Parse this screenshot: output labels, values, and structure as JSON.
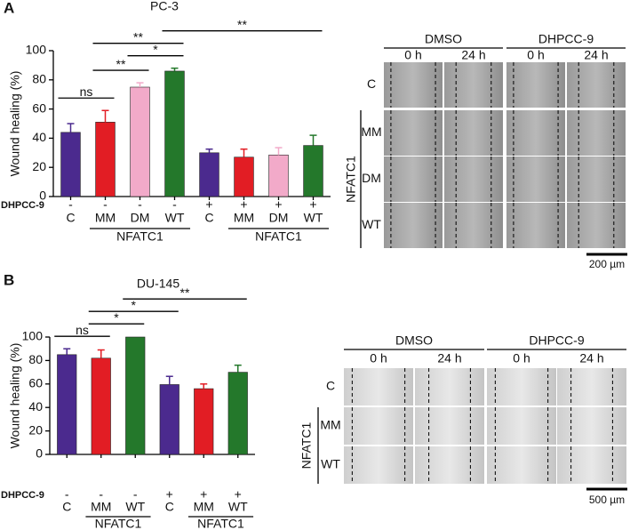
{
  "chart_data": [
    {
      "type": "bar",
      "panel": "A",
      "title": "PC-3",
      "y_label": "Wound healing (%)",
      "categories": [
        "C",
        "MM",
        "DM",
        "WT",
        "C",
        "MM",
        "DM",
        "WT"
      ],
      "treatment_label": "DHPCC-9",
      "treatment": [
        "-",
        "-",
        "-",
        "-",
        "+",
        "+",
        "+",
        "+"
      ],
      "groups": [
        {
          "label": "NFATC1",
          "from": 1,
          "to": 3
        },
        {
          "label": "NFATC1",
          "from": 5,
          "to": 7
        }
      ],
      "values": [
        44,
        51,
        75,
        86,
        30,
        27,
        28.5,
        35
      ],
      "errors": [
        6,
        8,
        3,
        2,
        2.5,
        5.5,
        5,
        7
      ],
      "colors": [
        "#4b2a8e",
        "#e21d24",
        "#f2aac9",
        "#24782b",
        "#4b2a8e",
        "#e21d24",
        "#f2aac9",
        "#24782b"
      ],
      "ylim": [
        0,
        100
      ],
      "yticks": [
        0,
        20,
        40,
        60,
        80,
        100
      ],
      "annotations": [
        {
          "from": 0,
          "to": 1,
          "label": "ns"
        },
        {
          "from": 1,
          "to": 2,
          "label": "**"
        },
        {
          "from": 2,
          "to": 3,
          "label": "*"
        },
        {
          "from": 1,
          "to": 3,
          "label": "**"
        },
        {
          "from": 3,
          "to": 7,
          "label": "**"
        }
      ]
    },
    {
      "type": "bar",
      "panel": "B",
      "title": "DU-145",
      "y_label": "Wound healing (%)",
      "categories": [
        "C",
        "MM",
        "WT",
        "C",
        "MM",
        "WT"
      ],
      "treatment_label": "DHPCC-9",
      "treatment": [
        "-",
        "-",
        "-",
        "+",
        "+",
        "+"
      ],
      "groups": [
        {
          "label": "NFATC1",
          "from": 1,
          "to": 2
        },
        {
          "label": "NFATC1",
          "from": 4,
          "to": 5
        }
      ],
      "values": [
        85,
        82,
        100,
        59.5,
        56,
        70
      ],
      "errors": [
        5,
        7,
        0,
        7,
        4,
        6
      ],
      "colors": [
        "#4b2a8e",
        "#e21d24",
        "#24782b",
        "#4b2a8e",
        "#e21d24",
        "#24782b"
      ],
      "ylim": [
        0,
        100
      ],
      "yticks": [
        0,
        20,
        40,
        60,
        80,
        100
      ],
      "annotations": [
        {
          "from": 0,
          "to": 1,
          "label": "ns"
        },
        {
          "from": 1,
          "to": 2,
          "label": "*"
        },
        {
          "from": 1,
          "to": 3,
          "label": "*"
        },
        {
          "from": 2,
          "to": 5,
          "label": "**"
        }
      ]
    }
  ],
  "panels": [
    {
      "conditions": [
        {
          "label": "DMSO",
          "times": [
            "0 h",
            "24 h"
          ]
        },
        {
          "label": "DHPCC-9",
          "times": [
            "0 h",
            "24 h"
          ]
        }
      ],
      "rows": [
        "C",
        "MM",
        "DM",
        "WT"
      ],
      "row_group": "NFATC1",
      "scale_bar": "200 µm"
    },
    {
      "conditions": [
        {
          "label": "DMSO",
          "times": [
            "0 h",
            "24 h"
          ]
        },
        {
          "label": "DHPCC-9",
          "times": [
            "0 h",
            "24 h"
          ]
        }
      ],
      "rows": [
        "C",
        "MM",
        "WT"
      ],
      "row_group": "NFATC1",
      "scale_bar": "500 µm"
    }
  ]
}
